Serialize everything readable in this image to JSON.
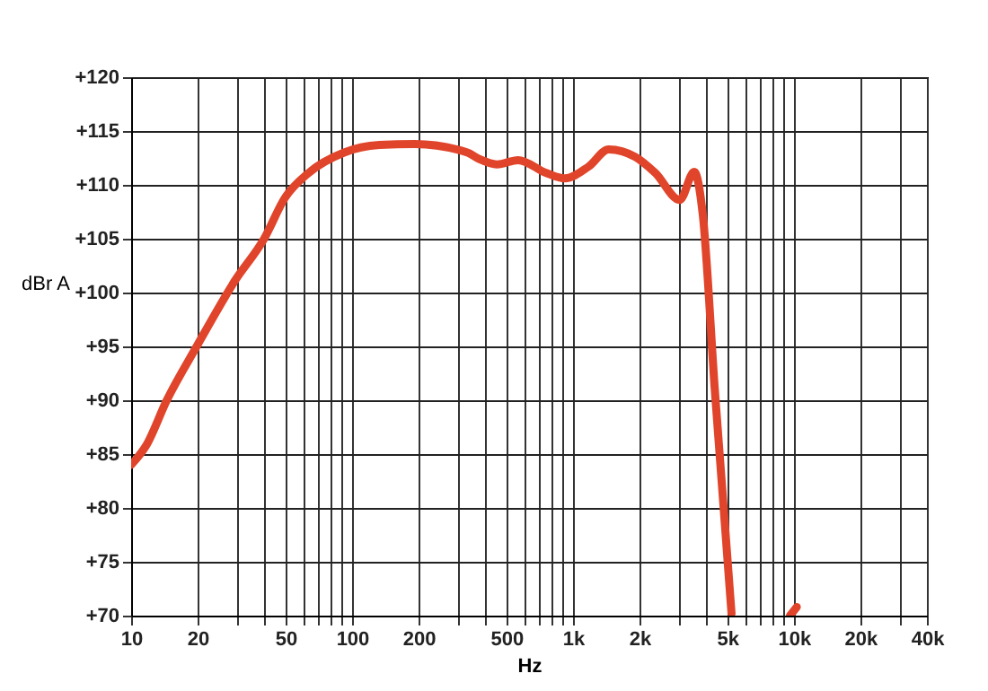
{
  "chart_data": {
    "type": "line",
    "xlabel": "Hz",
    "ylabel": "dBr A",
    "log": "x",
    "grid": true,
    "x": [
      10,
      11.7,
      14.5,
      19.8,
      29.5,
      40,
      49.7,
      63.5,
      92,
      133,
      192,
      333,
      376,
      453,
      564,
      757,
      917,
      1177,
      1451,
      1915,
      2360,
      3040,
      3540,
      3870,
      4380,
      5220,
      7000,
      9600,
      10300
    ],
    "series": [
      {
        "color": "#e0452b",
        "values": [
          84.0,
          85.8,
          90.0,
          95.0,
          101.1,
          105.0,
          108.8,
          111.1,
          113.0,
          113.7,
          113.8,
          113.0,
          112.4,
          111.9,
          112.3,
          111.1,
          110.6,
          111.7,
          113.3,
          112.6,
          111.1,
          108.6,
          111.2,
          107.2,
          91.1,
          70.2,
          null,
          70.0,
          70.8
        ]
      }
    ],
    "xlim": [
      10,
      40000
    ],
    "ylim": [
      70,
      120
    ],
    "xticks": [
      10,
      20,
      {
        "value": 30,
        "label": null
      },
      {
        "value": 40,
        "label": null
      },
      50,
      {
        "value": 60,
        "label": null
      },
      {
        "value": 70,
        "label": null
      },
      {
        "value": 80,
        "label": null
      },
      {
        "value": 90,
        "label": null
      },
      100,
      200,
      {
        "value": 300,
        "label": null
      },
      {
        "value": 400,
        "label": null
      },
      500,
      {
        "value": 600,
        "label": null
      },
      {
        "value": 700,
        "label": null
      },
      {
        "value": 800,
        "label": null
      },
      {
        "value": 900,
        "label": null
      },
      {
        "value": 1000,
        "label": "1k"
      },
      {
        "value": 2000,
        "label": "2k"
      },
      {
        "value": 3000,
        "label": null
      },
      {
        "value": 4000,
        "label": null
      },
      {
        "value": 5000,
        "label": "5k"
      },
      {
        "value": 6000,
        "label": null
      },
      {
        "value": 7000,
        "label": null
      },
      {
        "value": 8000,
        "label": null
      },
      {
        "value": 9000,
        "label": null
      },
      {
        "value": 10000,
        "label": "10k"
      },
      {
        "value": 20000,
        "label": "20k"
      },
      {
        "value": 30000,
        "label": null
      },
      {
        "value": 40000,
        "label": "40k"
      }
    ],
    "yticks": [
      {
        "value": 70,
        "label": "+70"
      },
      {
        "value": 75,
        "label": "+75"
      },
      {
        "value": 80,
        "label": "+80"
      },
      {
        "value": 85,
        "label": "+85"
      },
      {
        "value": 90,
        "label": "+90"
      },
      {
        "value": 95,
        "label": "+95"
      },
      {
        "value": 100,
        "label": "+100"
      },
      {
        "value": 105,
        "label": "+105"
      },
      {
        "value": 110,
        "label": "+110"
      },
      {
        "value": 115,
        "label": "+115"
      },
      {
        "value": 120,
        "label": "+120"
      }
    ]
  }
}
